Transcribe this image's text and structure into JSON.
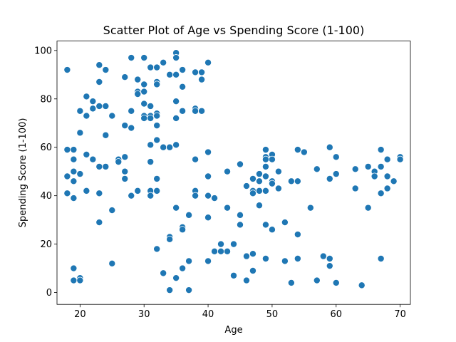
{
  "chart_data": {
    "type": "scatter",
    "title": "Scatter Plot of Age vs Spending Score (1-100)",
    "xlabel": "Age",
    "ylabel": "Spending Score (1-100)",
    "xlim": [
      16.4,
      71.6
    ],
    "ylim": [
      -4.9,
      103.9
    ],
    "xticks": [
      20,
      30,
      40,
      50,
      60,
      70
    ],
    "yticks": [
      0,
      20,
      40,
      60,
      80,
      100
    ],
    "grid": false,
    "point_color": "#1f77b4",
    "points": [
      [
        18,
        92
      ],
      [
        18,
        59
      ],
      [
        18,
        48
      ],
      [
        18,
        41
      ],
      [
        19,
        59
      ],
      [
        19,
        55
      ],
      [
        19,
        50
      ],
      [
        19,
        46
      ],
      [
        19,
        39
      ],
      [
        19,
        10
      ],
      [
        19,
        5
      ],
      [
        20,
        75
      ],
      [
        20,
        66
      ],
      [
        20,
        49
      ],
      [
        20,
        6
      ],
      [
        20,
        5
      ],
      [
        21,
        81
      ],
      [
        21,
        73
      ],
      [
        21,
        57
      ],
      [
        21,
        42
      ],
      [
        22,
        79
      ],
      [
        22,
        76
      ],
      [
        22,
        55
      ],
      [
        23,
        94
      ],
      [
        23,
        87
      ],
      [
        23,
        77
      ],
      [
        23,
        52
      ],
      [
        23,
        41
      ],
      [
        23,
        29
      ],
      [
        24,
        92
      ],
      [
        24,
        77
      ],
      [
        24,
        65
      ],
      [
        24,
        52
      ],
      [
        25,
        73
      ],
      [
        25,
        34
      ],
      [
        25,
        12
      ],
      [
        26,
        55
      ],
      [
        26,
        54
      ],
      [
        27,
        89
      ],
      [
        27,
        69
      ],
      [
        27,
        56
      ],
      [
        27,
        50
      ],
      [
        27,
        47
      ],
      [
        28,
        97
      ],
      [
        28,
        75
      ],
      [
        28,
        68
      ],
      [
        28,
        40
      ],
      [
        29,
        88
      ],
      [
        29,
        83
      ],
      [
        29,
        82
      ],
      [
        29,
        42
      ],
      [
        30,
        97
      ],
      [
        30,
        86
      ],
      [
        30,
        83
      ],
      [
        30,
        78
      ],
      [
        30,
        73
      ],
      [
        30,
        72
      ],
      [
        31,
        93
      ],
      [
        31,
        77
      ],
      [
        31,
        73
      ],
      [
        31,
        72
      ],
      [
        31,
        61
      ],
      [
        31,
        54
      ],
      [
        31,
        42
      ],
      [
        31,
        40
      ],
      [
        32,
        93
      ],
      [
        32,
        87
      ],
      [
        32,
        86
      ],
      [
        32,
        74
      ],
      [
        32,
        73
      ],
      [
        32,
        69
      ],
      [
        32,
        63
      ],
      [
        32,
        47
      ],
      [
        32,
        42
      ],
      [
        32,
        18
      ],
      [
        33,
        95
      ],
      [
        33,
        60
      ],
      [
        33,
        8
      ],
      [
        34,
        90
      ],
      [
        34,
        60
      ],
      [
        34,
        23
      ],
      [
        34,
        22
      ],
      [
        34,
        1
      ],
      [
        35,
        99
      ],
      [
        35,
        97
      ],
      [
        35,
        90
      ],
      [
        35,
        79
      ],
      [
        35,
        72
      ],
      [
        35,
        61
      ],
      [
        35,
        35
      ],
      [
        35,
        6
      ],
      [
        36,
        92
      ],
      [
        36,
        85
      ],
      [
        36,
        75
      ],
      [
        36,
        27
      ],
      [
        36,
        26
      ],
      [
        36,
        10
      ],
      [
        37,
        32
      ],
      [
        37,
        13
      ],
      [
        37,
        1
      ],
      [
        38,
        91
      ],
      [
        38,
        76
      ],
      [
        38,
        75
      ],
      [
        38,
        55
      ],
      [
        38,
        42
      ],
      [
        38,
        40
      ],
      [
        39,
        91
      ],
      [
        39,
        88
      ],
      [
        39,
        75
      ],
      [
        40,
        95
      ],
      [
        40,
        58
      ],
      [
        40,
        48
      ],
      [
        40,
        40
      ],
      [
        40,
        31
      ],
      [
        40,
        13
      ],
      [
        41,
        39
      ],
      [
        41,
        17
      ],
      [
        42,
        20
      ],
      [
        42,
        17
      ],
      [
        43,
        50
      ],
      [
        43,
        35
      ],
      [
        43,
        17
      ],
      [
        44,
        20
      ],
      [
        44,
        7
      ],
      [
        45,
        53
      ],
      [
        45,
        32
      ],
      [
        45,
        28
      ],
      [
        46,
        44
      ],
      [
        46,
        15
      ],
      [
        46,
        5
      ],
      [
        47,
        47
      ],
      [
        47,
        42
      ],
      [
        47,
        41
      ],
      [
        47,
        16
      ],
      [
        47,
        9
      ],
      [
        48,
        49
      ],
      [
        48,
        46
      ],
      [
        48,
        42
      ],
      [
        48,
        36
      ],
      [
        49,
        59
      ],
      [
        49,
        56
      ],
      [
        49,
        55
      ],
      [
        49,
        52
      ],
      [
        49,
        48
      ],
      [
        49,
        42
      ],
      [
        49,
        28
      ],
      [
        49,
        14
      ],
      [
        50,
        57
      ],
      [
        50,
        55
      ],
      [
        50,
        46
      ],
      [
        50,
        45
      ],
      [
        50,
        26
      ],
      [
        51,
        50
      ],
      [
        51,
        43
      ],
      [
        52,
        29
      ],
      [
        52,
        13
      ],
      [
        53,
        46
      ],
      [
        53,
        4
      ],
      [
        54,
        59
      ],
      [
        54,
        46
      ],
      [
        54,
        24
      ],
      [
        54,
        14
      ],
      [
        55,
        58
      ],
      [
        56,
        35
      ],
      [
        57,
        51
      ],
      [
        57,
        5
      ],
      [
        58,
        15
      ],
      [
        59,
        60
      ],
      [
        59,
        47
      ],
      [
        59,
        14
      ],
      [
        59,
        11
      ],
      [
        60,
        56
      ],
      [
        60,
        49
      ],
      [
        60,
        4
      ],
      [
        63,
        51
      ],
      [
        63,
        43
      ],
      [
        64,
        3
      ],
      [
        65,
        52
      ],
      [
        65,
        35
      ],
      [
        66,
        50
      ],
      [
        66,
        48
      ],
      [
        67,
        59
      ],
      [
        67,
        52
      ],
      [
        67,
        41
      ],
      [
        67,
        14
      ],
      [
        68,
        55
      ],
      [
        68,
        48
      ],
      [
        68,
        43
      ],
      [
        69,
        46
      ],
      [
        70,
        56
      ],
      [
        70,
        55
      ]
    ]
  }
}
